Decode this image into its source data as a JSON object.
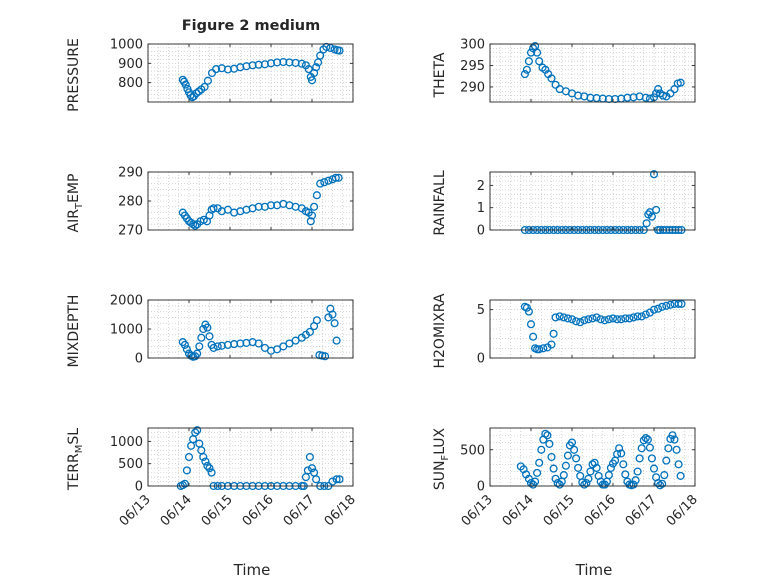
{
  "figure": {
    "title": "Figure 2 medium",
    "xlabel": "Time"
  },
  "style": {
    "marker_color": "#0072bd",
    "axis_color": "#262626",
    "grid_color": "#bdbdbd"
  },
  "chart_data": [
    {
      "id": "pressure",
      "type": "scatter",
      "ylabel": "PRESSURE",
      "ylim": [
        700,
        1000
      ],
      "yticks": [
        800,
        900,
        1000
      ],
      "xlim": [
        "06/13",
        "06/18"
      ],
      "xtick_labels": [
        "06/13",
        "06/14",
        "06/15",
        "06/16",
        "06/17",
        "06/18"
      ],
      "grid": true,
      "x": [
        13.85,
        13.88,
        13.92,
        13.96,
        14.0,
        14.04,
        14.08,
        14.12,
        14.18,
        14.24,
        14.3,
        14.38,
        14.46,
        14.56,
        14.66,
        14.8,
        14.95,
        15.1,
        15.25,
        15.4,
        15.55,
        15.7,
        15.85,
        16.0,
        16.15,
        16.3,
        16.45,
        16.6,
        16.75,
        16.85,
        16.92,
        16.97,
        17.0,
        17.05,
        17.1,
        17.15,
        17.2,
        17.28,
        17.35,
        17.45,
        17.55,
        17.62,
        17.67
      ],
      "y": [
        815,
        805,
        790,
        768,
        750,
        735,
        725,
        730,
        745,
        755,
        765,
        778,
        810,
        850,
        870,
        875,
        868,
        872,
        880,
        885,
        890,
        893,
        895,
        900,
        905,
        907,
        905,
        902,
        898,
        890,
        870,
        830,
        812,
        850,
        880,
        905,
        940,
        972,
        985,
        980,
        972,
        968,
        966
      ]
    },
    {
      "id": "theta",
      "type": "scatter",
      "ylabel": "THETA",
      "ylim": [
        286.5,
        300
      ],
      "yticks": [
        290,
        295,
        300
      ],
      "xlim": [
        "06/13",
        "06/18"
      ],
      "xtick_labels": [
        "06/13",
        "06/14",
        "06/15",
        "06/16",
        "06/17",
        "06/18"
      ],
      "grid": true,
      "x": [
        13.85,
        13.9,
        13.95,
        14.0,
        14.05,
        14.1,
        14.15,
        14.2,
        14.28,
        14.35,
        14.42,
        14.5,
        14.6,
        14.7,
        14.85,
        15.0,
        15.15,
        15.3,
        15.45,
        15.6,
        15.75,
        15.9,
        16.05,
        16.2,
        16.35,
        16.5,
        16.65,
        16.8,
        16.9,
        17.0,
        17.05,
        17.1,
        17.15,
        17.22,
        17.3,
        17.4,
        17.5,
        17.58,
        17.65
      ],
      "y": [
        293,
        294,
        296,
        298,
        299,
        299.5,
        298,
        296,
        294.5,
        294,
        293,
        292,
        290.5,
        289.5,
        289,
        288.5,
        288,
        287.8,
        287.5,
        287.4,
        287.3,
        287.2,
        287.2,
        287.3,
        287.5,
        287.6,
        287.8,
        287.5,
        287.3,
        287.6,
        288.5,
        289.5,
        288.5,
        288,
        287.8,
        288.5,
        289.5,
        290.8,
        291
      ]
    },
    {
      "id": "air_temp",
      "type": "scatter",
      "ylabel": "AIR_TEMP",
      "ylim": [
        270,
        290
      ],
      "yticks": [
        270,
        280,
        290
      ],
      "xlim": [
        "06/13",
        "06/18"
      ],
      "xtick_labels": [
        "06/13",
        "06/14",
        "06/15",
        "06/16",
        "06/17",
        "06/18"
      ],
      "grid": true,
      "x": [
        13.85,
        13.9,
        13.95,
        14.0,
        14.05,
        14.1,
        14.15,
        14.2,
        14.28,
        14.36,
        14.44,
        14.5,
        14.55,
        14.6,
        14.7,
        14.8,
        14.95,
        15.1,
        15.25,
        15.4,
        15.55,
        15.7,
        15.85,
        16.0,
        16.15,
        16.3,
        16.45,
        16.6,
        16.75,
        16.85,
        16.92,
        16.97,
        17.0,
        17.05,
        17.12,
        17.2,
        17.3,
        17.4,
        17.5,
        17.58,
        17.65
      ],
      "y": [
        276,
        275,
        274,
        273,
        272.5,
        272,
        271.5,
        272,
        273,
        273.5,
        273,
        275,
        277,
        277.5,
        277.5,
        276.5,
        277,
        276,
        276.5,
        277,
        277.5,
        278,
        278,
        278.5,
        278.5,
        279,
        278.5,
        278,
        277.5,
        276.5,
        276,
        273,
        275,
        278,
        282,
        286,
        286.5,
        287,
        287.5,
        288,
        288
      ]
    },
    {
      "id": "rainfall",
      "type": "scatter",
      "ylabel": "RAINFALL",
      "ylim": [
        0,
        2.6
      ],
      "yticks": [
        0,
        1,
        2
      ],
      "xlim": [
        "06/13",
        "06/18"
      ],
      "xtick_labels": [
        "06/13",
        "06/14",
        "06/15",
        "06/16",
        "06/17",
        "06/18"
      ],
      "grid": true,
      "x": [
        13.85,
        13.95,
        14.05,
        14.15,
        14.25,
        14.35,
        14.45,
        14.55,
        14.65,
        14.75,
        14.85,
        14.95,
        15.05,
        15.15,
        15.25,
        15.35,
        15.45,
        15.55,
        15.65,
        15.75,
        15.85,
        15.95,
        16.05,
        16.15,
        16.25,
        16.35,
        16.45,
        16.55,
        16.65,
        16.75,
        16.82,
        16.86,
        16.9,
        16.95,
        17.0,
        17.05,
        17.1,
        17.15,
        17.22,
        17.3,
        17.38,
        17.45,
        17.52,
        17.6,
        17.67
      ],
      "y": [
        0,
        0,
        0,
        0,
        0,
        0,
        0,
        0,
        0,
        0,
        0,
        0,
        0,
        0,
        0,
        0,
        0,
        0,
        0,
        0,
        0,
        0,
        0,
        0,
        0,
        0,
        0,
        0,
        0,
        0,
        0.3,
        0.7,
        0.8,
        0.6,
        2.5,
        0.9,
        0,
        0,
        0,
        0,
        0,
        0,
        0,
        0,
        0
      ]
    },
    {
      "id": "mixdepth",
      "type": "scatter",
      "ylabel": "MIXDEPTH",
      "ylim": [
        0,
        2000
      ],
      "yticks": [
        0,
        1000,
        2000
      ],
      "xlim": [
        "06/13",
        "06/18"
      ],
      "xtick_labels": [
        "06/13",
        "06/14",
        "06/15",
        "06/16",
        "06/17",
        "06/18"
      ],
      "grid": true,
      "x": [
        13.85,
        13.9,
        13.95,
        14.0,
        14.05,
        14.1,
        14.15,
        14.2,
        14.25,
        14.3,
        14.35,
        14.4,
        14.45,
        14.5,
        14.55,
        14.6,
        14.7,
        14.8,
        14.95,
        15.1,
        15.25,
        15.4,
        15.55,
        15.7,
        15.85,
        16.0,
        16.15,
        16.3,
        16.45,
        16.6,
        16.75,
        16.85,
        16.95,
        17.05,
        17.12,
        17.18,
        17.25,
        17.32,
        17.4,
        17.45,
        17.5,
        17.55,
        17.6
      ],
      "y": [
        550,
        450,
        300,
        150,
        80,
        40,
        60,
        150,
        400,
        700,
        1000,
        1150,
        1050,
        750,
        450,
        350,
        400,
        420,
        450,
        480,
        500,
        520,
        550,
        500,
        350,
        250,
        300,
        400,
        500,
        600,
        700,
        800,
        900,
        1100,
        1300,
        100,
        80,
        60,
        1400,
        1700,
        1500,
        1200,
        600
      ]
    },
    {
      "id": "h2omixra",
      "type": "scatter",
      "ylabel": "H2OMIXRA",
      "ylim": [
        0,
        6
      ],
      "yticks": [
        0,
        5
      ],
      "xlim": [
        "06/13",
        "06/18"
      ],
      "xtick_labels": [
        "06/13",
        "06/14",
        "06/15",
        "06/16",
        "06/17",
        "06/18"
      ],
      "grid": true,
      "x": [
        13.85,
        13.9,
        13.95,
        14.0,
        14.05,
        14.1,
        14.15,
        14.2,
        14.3,
        14.4,
        14.5,
        14.55,
        14.6,
        14.7,
        14.8,
        14.9,
        15.0,
        15.1,
        15.2,
        15.3,
        15.4,
        15.5,
        15.6,
        15.7,
        15.8,
        15.9,
        16.0,
        16.1,
        16.2,
        16.3,
        16.4,
        16.5,
        16.6,
        16.7,
        16.8,
        16.9,
        17.0,
        17.1,
        17.2,
        17.3,
        17.4,
        17.5,
        17.6,
        17.67
      ],
      "y": [
        5.3,
        5.2,
        4.8,
        3.5,
        2.2,
        1.0,
        0.9,
        0.9,
        1.0,
        1.1,
        1.4,
        2.5,
        4.2,
        4.3,
        4.2,
        4.1,
        4.0,
        3.8,
        3.7,
        3.9,
        4.0,
        4.1,
        4.2,
        4.0,
        3.9,
        4.0,
        4.1,
        4.0,
        4.0,
        4.1,
        4.1,
        4.2,
        4.3,
        4.3,
        4.5,
        4.7,
        5.0,
        5.1,
        5.3,
        5.4,
        5.5,
        5.6,
        5.6,
        5.6
      ]
    },
    {
      "id": "terr_msl",
      "type": "scatter",
      "ylabel": "TERR_MSL",
      "ylim": [
        0,
        1300
      ],
      "yticks": [
        0,
        500,
        1000
      ],
      "xlim": [
        "06/13",
        "06/18"
      ],
      "xtick_labels": [
        "06/13",
        "06/14",
        "06/15",
        "06/16",
        "06/17",
        "06/18"
      ],
      "grid": true,
      "x": [
        13.8,
        13.85,
        13.9,
        13.95,
        14.0,
        14.05,
        14.1,
        14.15,
        14.2,
        14.25,
        14.3,
        14.35,
        14.4,
        14.45,
        14.5,
        14.55,
        14.6,
        14.7,
        14.8,
        14.95,
        15.1,
        15.25,
        15.4,
        15.55,
        15.7,
        15.85,
        16.0,
        16.15,
        16.3,
        16.45,
        16.6,
        16.75,
        16.8,
        16.85,
        16.9,
        16.95,
        17.0,
        17.05,
        17.1,
        17.2,
        17.3,
        17.4,
        17.5,
        17.6,
        17.67
      ],
      "y": [
        0,
        20,
        50,
        350,
        650,
        900,
        1050,
        1200,
        1250,
        950,
        800,
        650,
        550,
        450,
        400,
        300,
        0,
        0,
        0,
        0,
        0,
        0,
        0,
        0,
        0,
        0,
        0,
        0,
        0,
        0,
        0,
        0,
        0,
        200,
        350,
        650,
        400,
        300,
        150,
        0,
        0,
        0,
        100,
        150,
        150
      ]
    },
    {
      "id": "sun_flux",
      "type": "scatter",
      "ylabel": "SUN_FLUX",
      "ylim": [
        0,
        800
      ],
      "yticks": [
        0,
        500
      ],
      "xlim": [
        "06/13",
        "06/18"
      ],
      "xtick_labels": [
        "06/13",
        "06/14",
        "06/15",
        "06/16",
        "06/17",
        "06/18"
      ],
      "grid": true,
      "x": [
        13.75,
        13.82,
        13.88,
        13.95,
        14.0,
        14.05,
        14.1,
        14.15,
        14.2,
        14.25,
        14.3,
        14.35,
        14.4,
        14.45,
        14.5,
        14.55,
        14.6,
        14.65,
        14.7,
        14.75,
        14.8,
        14.85,
        14.9,
        14.95,
        15.0,
        15.05,
        15.1,
        15.15,
        15.2,
        15.25,
        15.3,
        15.35,
        15.4,
        15.45,
        15.5,
        15.55,
        15.6,
        15.65,
        15.7,
        15.75,
        15.8,
        15.85,
        15.9,
        15.95,
        16.0,
        16.05,
        16.1,
        16.15,
        16.2,
        16.25,
        16.3,
        16.35,
        16.4,
        16.45,
        16.5,
        16.55,
        16.6,
        16.65,
        16.7,
        16.75,
        16.8,
        16.85,
        16.9,
        16.95,
        17.0,
        17.05,
        17.1,
        17.15,
        17.2,
        17.25,
        17.3,
        17.35,
        17.4,
        17.45,
        17.5,
        17.55,
        17.6,
        17.65
      ],
      "y": [
        270,
        230,
        160,
        100,
        40,
        20,
        60,
        180,
        320,
        500,
        640,
        720,
        700,
        580,
        400,
        240,
        100,
        40,
        20,
        60,
        150,
        280,
        420,
        560,
        600,
        500,
        380,
        250,
        140,
        50,
        20,
        40,
        100,
        200,
        300,
        320,
        250,
        140,
        60,
        20,
        20,
        60,
        150,
        250,
        310,
        350,
        440,
        520,
        450,
        300,
        160,
        60,
        20,
        10,
        20,
        80,
        200,
        380,
        520,
        630,
        660,
        640,
        530,
        380,
        240,
        120,
        40,
        10,
        30,
        150,
        350,
        520,
        650,
        700,
        640,
        500,
        300,
        140
      ]
    }
  ]
}
